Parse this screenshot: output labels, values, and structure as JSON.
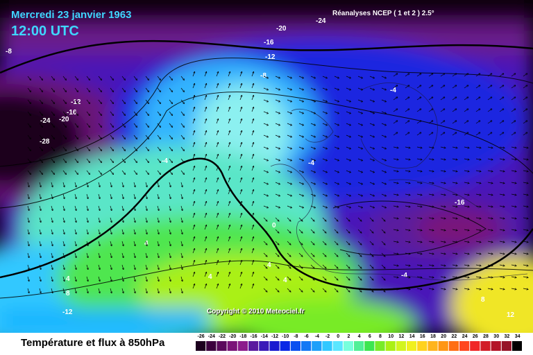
{
  "header": {
    "date": "Mercredi 23 janvier 1963",
    "time": "12:00 UTC",
    "source": "Réanalyses NCEP ( 1 et 2 ) 2.5°"
  },
  "copyright": "Copyright © 2010 Meteociel.fr",
  "legend": {
    "title": "Température et flux à 850hPa",
    "ticks": [
      "-26",
      "-24",
      "-22",
      "-20",
      "-18",
      "-16",
      "-14",
      "-12",
      "-10",
      "-8",
      "-6",
      "-4",
      "-2",
      "0",
      "2",
      "4",
      "6",
      "8",
      "10",
      "12",
      "14",
      "16",
      "18",
      "20",
      "22",
      "24",
      "26",
      "28",
      "30",
      "32",
      "34"
    ],
    "colors": [
      "#1c001e",
      "#3c003e",
      "#5a0a5c",
      "#7a1478",
      "#8c1c8c",
      "#5a1a9e",
      "#3a1ab8",
      "#1a1ad0",
      "#0a28e6",
      "#0a50f0",
      "#1478f5",
      "#1ea0fa",
      "#32c8ff",
      "#5ae6ff",
      "#78ffdc",
      "#50f096",
      "#3ce650",
      "#78eb28",
      "#aaf014",
      "#d2f51e",
      "#f0f01e",
      "#ffd21e",
      "#ffb41e",
      "#ff9614",
      "#ff6e14",
      "#ff461e",
      "#f02828",
      "#d21e28",
      "#b41428",
      "#961428",
      "#000000"
    ]
  },
  "map": {
    "contour_labels": [
      "-24",
      "-20",
      "-16",
      "-12",
      "-8",
      "-8",
      "-4",
      "-12",
      "-16",
      "-20",
      "-24",
      "-28",
      "-4",
      "-4",
      "-16",
      "0",
      "4",
      "4",
      "4",
      "4",
      "4",
      "-4",
      "8",
      "-12",
      "8",
      "12"
    ]
  }
}
